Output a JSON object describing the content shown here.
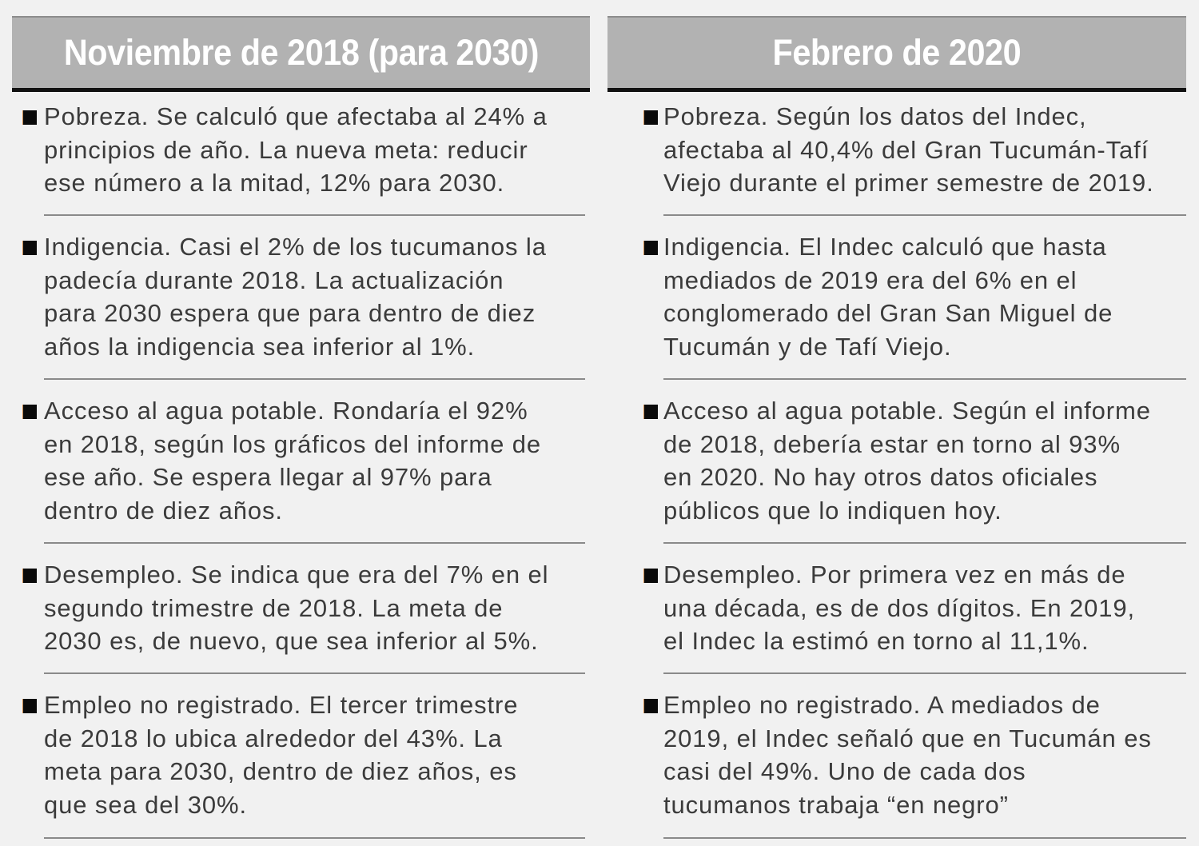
{
  "left_column": {
    "header": "Noviembre de 2018 (para 2030)",
    "items": [
      {
        "lines": [
          "Pobreza. Se calculó que afectaba al 24% a",
          "principios de año. La nueva meta: reducir",
          "ese número a la mitad, 12% para 2030."
        ]
      },
      {
        "lines": [
          "Indigencia. Casi el 2% de los tucumanos la",
          "padecía durante 2018. La actualización",
          "para 2030 espera que para dentro de diez",
          "años la indigencia sea inferior al 1%."
        ]
      },
      {
        "lines": [
          "Acceso al agua potable. Rondaría el 92%",
          "en 2018, según los gráficos del informe de",
          "ese año. Se espera llegar al 97% para",
          "dentro de diez años."
        ]
      },
      {
        "lines": [
          "Desempleo. Se indica que era del 7% en el",
          "segundo trimestre de 2018. La meta de",
          "2030 es, de nuevo, que sea inferior al 5%."
        ]
      },
      {
        "lines": [
          "Empleo no registrado. El tercer trimestre",
          "de 2018 lo ubica alrededor del 43%. La",
          "meta para 2030, dentro de diez años, es",
          "que sea del 30%."
        ]
      }
    ]
  },
  "right_column": {
    "header": "Febrero de 2020",
    "items": [
      {
        "lines": [
          "Pobreza. Según los datos del Indec,",
          "afectaba al 40,4% del Gran Tucumán-Tafí",
          "Viejo durante el primer semestre de 2019."
        ]
      },
      {
        "lines": [
          "Indigencia. El Indec calculó que hasta",
          "mediados de 2019 era del 6% en el",
          "conglomerado del Gran San Miguel de",
          "Tucumán y de Tafí Viejo."
        ]
      },
      {
        "lines": [
          "Acceso al agua potable. Según el informe",
          "de 2018, debería estar en torno al 93%",
          "en 2020. No hay otros datos oficiales",
          "públicos que lo indiquen hoy."
        ]
      },
      {
        "lines": [
          "Desempleo. Por primera vez en más de",
          "una década, es de dos dígitos. En 2019,",
          "el Indec la estimó en torno al 11,1%."
        ]
      },
      {
        "lines": [
          "Empleo no registrado. A mediados de",
          "2019, el Indec señaló que en Tucumán es",
          "casi del 49%. Uno de cada dos",
          "tucumanos trabaja “en negro”"
        ]
      }
    ]
  },
  "colors": {
    "background": "#f1f1f1",
    "header_bg": "#b2b2b2",
    "header_text": "#ffffff",
    "header_underline": "#111111",
    "body_text": "#3b3b3b",
    "bullet": "#0a0a0a",
    "divider": "#8a8a8a"
  }
}
